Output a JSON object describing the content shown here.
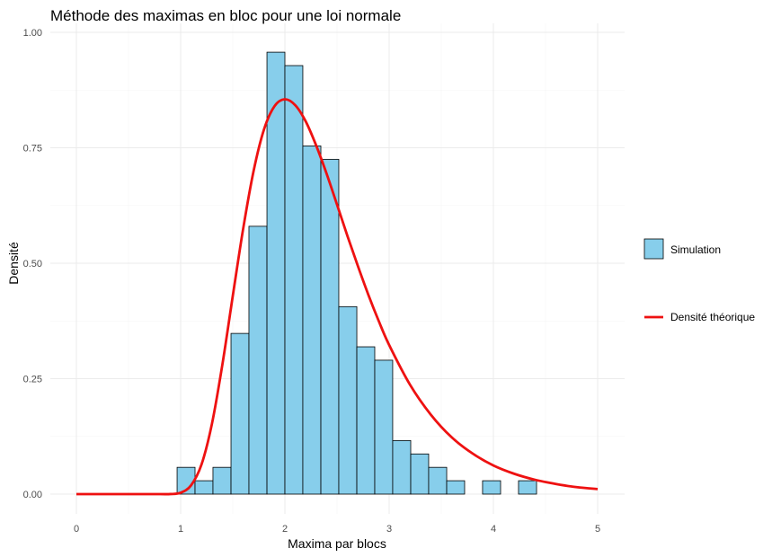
{
  "chart_data": {
    "type": "bar",
    "title": "Méthode des maximas en bloc pour une loi normale",
    "xlabel": "Maxima par blocs",
    "ylabel": "Densité",
    "xlim": [
      -0.25,
      5.25
    ],
    "ylim": [
      0,
      1.0
    ],
    "x_ticks": [
      "0",
      "1",
      "2",
      "3",
      "4",
      "5"
    ],
    "y_ticks": [
      "0.00",
      "0.25",
      "0.50",
      "0.75",
      "1.00"
    ],
    "grid": true,
    "legend_position": "right",
    "colors": {
      "bar_fill": "#87CEEB",
      "bar_stroke": "#000000",
      "line": "#ee1111",
      "grid_major": "#ebebeb",
      "grid_minor": "#f4f4f4"
    },
    "histogram": {
      "name": "Simulation",
      "bin_width": 0.1724,
      "bins": [
        {
          "x0": 0.966,
          "x1": 1.138,
          "density": 0.058
        },
        {
          "x0": 1.138,
          "x1": 1.31,
          "density": 0.029
        },
        {
          "x0": 1.31,
          "x1": 1.483,
          "density": 0.058
        },
        {
          "x0": 1.483,
          "x1": 1.655,
          "density": 0.348
        },
        {
          "x0": 1.655,
          "x1": 1.828,
          "density": 0.58
        },
        {
          "x0": 1.828,
          "x1": 2.0,
          "density": 0.957
        },
        {
          "x0": 2.0,
          "x1": 2.172,
          "density": 0.928
        },
        {
          "x0": 2.172,
          "x1": 2.345,
          "density": 0.754
        },
        {
          "x0": 2.345,
          "x1": 2.517,
          "density": 0.725
        },
        {
          "x0": 2.517,
          "x1": 2.69,
          "density": 0.406
        },
        {
          "x0": 2.69,
          "x1": 2.862,
          "density": 0.319
        },
        {
          "x0": 2.862,
          "x1": 3.034,
          "density": 0.29
        },
        {
          "x0": 3.034,
          "x1": 3.207,
          "density": 0.116
        },
        {
          "x0": 3.207,
          "x1": 3.379,
          "density": 0.087
        },
        {
          "x0": 3.379,
          "x1": 3.552,
          "density": 0.058
        },
        {
          "x0": 3.552,
          "x1": 3.724,
          "density": 0.029
        },
        {
          "x0": 3.724,
          "x1": 3.896,
          "density": 0.0
        },
        {
          "x0": 3.896,
          "x1": 4.069,
          "density": 0.029
        },
        {
          "x0": 4.069,
          "x1": 4.241,
          "density": 0.0
        },
        {
          "x0": 4.241,
          "x1": 4.414,
          "density": 0.029
        },
        {
          "x0": 4.414,
          "x1": 4.586,
          "density": 0.0
        },
        {
          "x0": 4.586,
          "x1": 4.759,
          "density": 0.0
        }
      ]
    },
    "line_series": {
      "name": "Densité théorique",
      "x": [
        0,
        0.5,
        0.8,
        0.9,
        1.0,
        1.1,
        1.2,
        1.3,
        1.4,
        1.5,
        1.6,
        1.7,
        1.8,
        1.9,
        2.0,
        2.1,
        2.2,
        2.3,
        2.4,
        2.5,
        2.6,
        2.7,
        2.8,
        2.9,
        3.0,
        3.2,
        3.4,
        3.6,
        3.8,
        4.0,
        4.2,
        4.4,
        4.6,
        4.8,
        5.0
      ],
      "y": [
        0,
        0,
        0,
        0.0001,
        0.003,
        0.019,
        0.064,
        0.152,
        0.28,
        0.429,
        0.575,
        0.7,
        0.79,
        0.84,
        0.855,
        0.842,
        0.807,
        0.755,
        0.694,
        0.627,
        0.559,
        0.494,
        0.432,
        0.375,
        0.323,
        0.237,
        0.172,
        0.123,
        0.088,
        0.062,
        0.044,
        0.031,
        0.022,
        0.015,
        0.011
      ]
    }
  }
}
